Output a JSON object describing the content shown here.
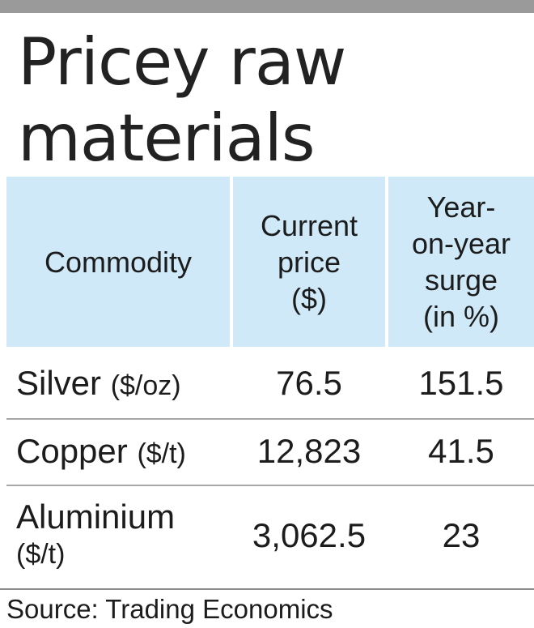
{
  "title": "Pricey raw materials",
  "chart_data": {
    "type": "table",
    "title": "Pricey raw materials",
    "columns": [
      {
        "lines": [
          "Commodity"
        ]
      },
      {
        "lines": [
          "Current",
          "price",
          "($)"
        ]
      },
      {
        "lines": [
          "Year-",
          "on-year",
          "surge",
          "(in %)"
        ]
      }
    ],
    "rows": [
      {
        "commodity": "Silver",
        "unit": "($/oz)",
        "price": "76.5",
        "surge": "151.5"
      },
      {
        "commodity": "Copper",
        "unit": "($/t)",
        "price": "12,823",
        "surge": "41.5"
      },
      {
        "commodity": "Aluminium",
        "unit": "($/t)",
        "price": "3,062.5",
        "surge": "23"
      }
    ]
  },
  "source": "Source: Trading Economics",
  "colors": {
    "header_bg": "#cfe9f8",
    "top_bar": "#9a9a9a",
    "text": "#1c1c1c"
  }
}
